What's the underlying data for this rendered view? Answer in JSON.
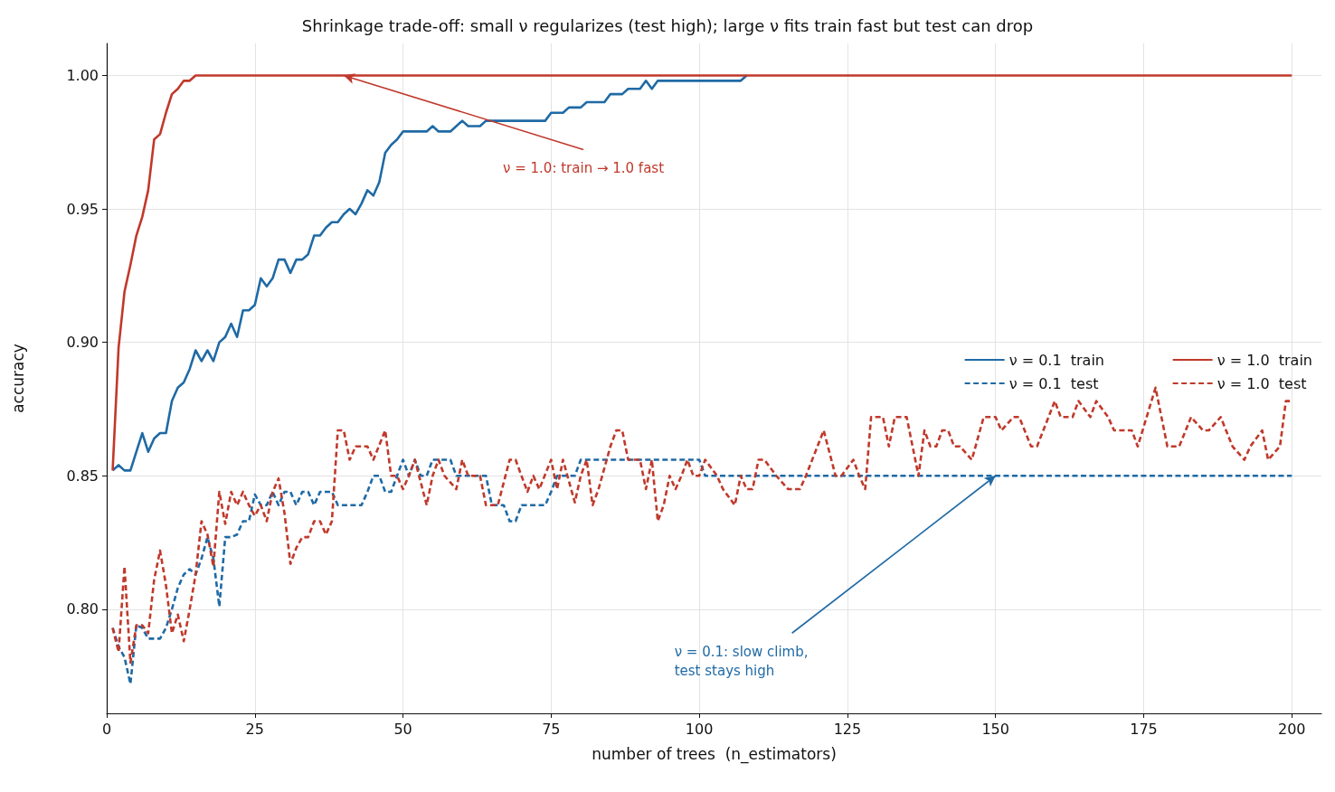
{
  "chart_data": {
    "type": "line",
    "title": "Shrinkage trade-off: small ν regularizes (test high); large ν fits train fast but test can drop",
    "xlabel": "number of trees  (n_estimators)",
    "ylabel": "accuracy",
    "xlim": [
      0,
      205
    ],
    "xticks": [
      0,
      25,
      50,
      75,
      100,
      125,
      150,
      175,
      200
    ],
    "ylim": [
      0.761,
      1.012
    ],
    "yticks": [
      {
        "value": 0.8,
        "label": "0.80"
      },
      {
        "value": 0.85,
        "label": "0.85"
      },
      {
        "value": 0.9,
        "label": "0.90"
      },
      {
        "value": 0.95,
        "label": "0.95"
      },
      {
        "value": 1.0,
        "label": "1.00"
      }
    ],
    "grid": true,
    "legend": "right",
    "marker": "none",
    "annotations": [
      {
        "text": "ν = 1.0: train → 1.0 fast",
        "x": 40,
        "y": 1.0
      },
      {
        "text": "ν = 0.1: slow climb,\ntest stays high",
        "x": 150,
        "y": 0.85
      }
    ],
    "series": [
      {
        "name": "ν = 0.1  train",
        "color": "#1f6aa5",
        "line_style": "solid",
        "x": [
          1,
          2,
          3,
          4,
          6,
          7,
          8,
          9,
          10,
          11,
          12,
          13,
          14,
          15,
          16,
          17,
          18,
          19,
          20,
          21,
          22,
          23,
          24,
          25,
          26,
          27,
          28,
          29,
          30,
          31,
          32,
          33,
          34,
          35,
          36,
          37,
          38,
          39,
          40,
          41,
          42,
          43,
          44,
          45,
          46,
          47,
          48,
          49,
          50,
          54,
          55,
          56,
          58,
          60,
          61,
          63,
          64,
          74,
          75,
          77,
          78,
          80,
          81,
          84,
          85,
          87,
          88,
          90,
          91,
          92,
          93,
          107,
          108
        ],
        "values": [
          0.852,
          0.854,
          0.852,
          0.852,
          0.866,
          0.859,
          0.864,
          0.866,
          0.866,
          0.878,
          0.883,
          0.885,
          0.89,
          0.897,
          0.893,
          0.897,
          0.893,
          0.9,
          0.902,
          0.907,
          0.902,
          0.912,
          0.912,
          0.914,
          0.924,
          0.921,
          0.924,
          0.931,
          0.931,
          0.926,
          0.931,
          0.931,
          0.933,
          0.94,
          0.94,
          0.943,
          0.945,
          0.945,
          0.948,
          0.95,
          0.948,
          0.952,
          0.957,
          0.955,
          0.96,
          0.971,
          0.974,
          0.976,
          0.979,
          0.979,
          0.981,
          0.979,
          0.979,
          0.983,
          0.981,
          0.981,
          0.983,
          0.983,
          0.986,
          0.986,
          0.988,
          0.988,
          0.99,
          0.99,
          0.993,
          0.993,
          0.995,
          0.995,
          0.998,
          0.995,
          0.998,
          0.998,
          1.0
        ]
      },
      {
        "name": "ν = 0.1  test",
        "color": "#1f6aa5",
        "line_style": "dashed",
        "x": [
          1,
          2,
          3,
          4,
          5,
          6,
          7,
          8,
          9,
          10,
          11,
          12,
          13,
          14,
          15,
          16,
          17,
          18,
          19,
          20,
          21,
          22,
          23,
          24,
          25,
          26,
          27,
          28,
          29,
          30,
          31,
          32,
          33,
          34,
          35,
          36,
          37,
          38,
          39,
          43,
          44,
          45,
          46,
          47,
          48,
          49,
          50,
          51,
          52,
          53,
          54,
          55,
          58,
          59,
          64,
          65,
          67,
          68,
          69,
          70,
          74,
          75,
          76,
          79,
          80,
          100,
          101,
          200
        ],
        "values": [
          0.793,
          0.786,
          0.782,
          0.772,
          0.794,
          0.793,
          0.789,
          0.789,
          0.789,
          0.793,
          0.8,
          0.808,
          0.813,
          0.815,
          0.813,
          0.819,
          0.827,
          0.819,
          0.801,
          0.827,
          0.827,
          0.828,
          0.833,
          0.833,
          0.843,
          0.839,
          0.839,
          0.844,
          0.839,
          0.844,
          0.844,
          0.839,
          0.844,
          0.844,
          0.839,
          0.844,
          0.844,
          0.844,
          0.839,
          0.839,
          0.844,
          0.85,
          0.85,
          0.844,
          0.844,
          0.85,
          0.856,
          0.85,
          0.856,
          0.85,
          0.85,
          0.856,
          0.856,
          0.85,
          0.85,
          0.839,
          0.839,
          0.833,
          0.833,
          0.839,
          0.839,
          0.844,
          0.85,
          0.85,
          0.856,
          0.856,
          0.85,
          0.85
        ]
      },
      {
        "name": "ν = 1.0  train",
        "color": "#c0392b",
        "line_style": "solid",
        "x": [
          1,
          2,
          3,
          4,
          5,
          6,
          7,
          8,
          9,
          10,
          11,
          12,
          13,
          14,
          15,
          200
        ],
        "values": [
          0.852,
          0.898,
          0.919,
          0.929,
          0.94,
          0.947,
          0.957,
          0.976,
          0.978,
          0.986,
          0.993,
          0.995,
          0.998,
          0.998,
          1.0,
          1.0
        ]
      },
      {
        "name": "ν = 1.0  test",
        "color": "#c0392b",
        "line_style": "dashed",
        "x": [
          1,
          2,
          3,
          4,
          5,
          6,
          7,
          8,
          9,
          10,
          11,
          12,
          13,
          14,
          15,
          16,
          17,
          18,
          19,
          20,
          21,
          22,
          23,
          24,
          25,
          26,
          27,
          28,
          29,
          30,
          31,
          32,
          33,
          34,
          35,
          36,
          37,
          38,
          39,
          40,
          41,
          42,
          43,
          44,
          45,
          47,
          48,
          49,
          50,
          51,
          52,
          54,
          55,
          56,
          57,
          59,
          60,
          61,
          63,
          64,
          66,
          68,
          69,
          71,
          72,
          73,
          75,
          76,
          77,
          79,
          80,
          81,
          82,
          83,
          85,
          86,
          87,
          88,
          90,
          91,
          92,
          93,
          94,
          95,
          96,
          97,
          98,
          99,
          100,
          101,
          103,
          104,
          106,
          107,
          108,
          109,
          110,
          111,
          113,
          115,
          117,
          118,
          121,
          123,
          124,
          126,
          127,
          128,
          129,
          131,
          132,
          133,
          135,
          137,
          138,
          139,
          140,
          141,
          142,
          143,
          144,
          146,
          148,
          150,
          151,
          153,
          154,
          156,
          157,
          160,
          161,
          163,
          164,
          166,
          167,
          169,
          170,
          173,
          174,
          177,
          179,
          181,
          183,
          185,
          186,
          188,
          190,
          192,
          193,
          195,
          196,
          198,
          199,
          200
        ],
        "values": [
          0.793,
          0.784,
          0.816,
          0.78,
          0.794,
          0.794,
          0.791,
          0.811,
          0.822,
          0.809,
          0.791,
          0.798,
          0.788,
          0.8,
          0.813,
          0.833,
          0.828,
          0.816,
          0.844,
          0.832,
          0.844,
          0.839,
          0.844,
          0.839,
          0.835,
          0.839,
          0.833,
          0.844,
          0.849,
          0.836,
          0.817,
          0.823,
          0.827,
          0.827,
          0.833,
          0.833,
          0.828,
          0.833,
          0.867,
          0.867,
          0.856,
          0.861,
          0.861,
          0.861,
          0.856,
          0.867,
          0.85,
          0.85,
          0.845,
          0.85,
          0.856,
          0.839,
          0.85,
          0.856,
          0.85,
          0.845,
          0.856,
          0.85,
          0.85,
          0.839,
          0.839,
          0.856,
          0.856,
          0.844,
          0.85,
          0.845,
          0.856,
          0.845,
          0.856,
          0.84,
          0.85,
          0.856,
          0.839,
          0.845,
          0.861,
          0.867,
          0.867,
          0.856,
          0.856,
          0.845,
          0.856,
          0.833,
          0.839,
          0.85,
          0.845,
          0.85,
          0.856,
          0.85,
          0.85,
          0.856,
          0.85,
          0.845,
          0.839,
          0.85,
          0.845,
          0.845,
          0.856,
          0.856,
          0.85,
          0.845,
          0.845,
          0.85,
          0.867,
          0.85,
          0.85,
          0.856,
          0.85,
          0.845,
          0.872,
          0.872,
          0.861,
          0.872,
          0.872,
          0.85,
          0.867,
          0.861,
          0.861,
          0.867,
          0.867,
          0.861,
          0.861,
          0.856,
          0.872,
          0.872,
          0.867,
          0.872,
          0.872,
          0.861,
          0.861,
          0.878,
          0.872,
          0.872,
          0.878,
          0.872,
          0.878,
          0.872,
          0.867,
          0.867,
          0.861,
          0.883,
          0.861,
          0.861,
          0.872,
          0.867,
          0.867,
          0.872,
          0.861,
          0.856,
          0.861,
          0.867,
          0.856,
          0.861,
          0.878,
          0.878
        ]
      }
    ]
  }
}
